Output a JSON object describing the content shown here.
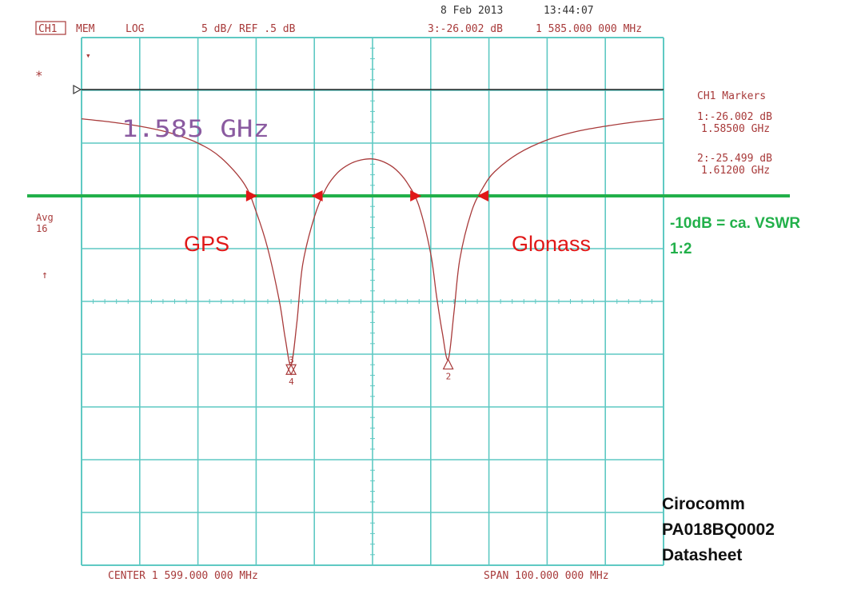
{
  "header": {
    "channel": "CH1",
    "mem": "MEM",
    "format": "LOG",
    "scale": "5 dB/ REF .5 dB",
    "date": "8 Feb 2013",
    "time": "13:44:07",
    "active_marker": "3:-26.002 dB",
    "active_marker_freq": "1 585.000 000 MHz"
  },
  "left_status": {
    "star": "*",
    "avg_line1": "Avg",
    "avg_line2": "16",
    "arrow": "↑"
  },
  "markers_panel": {
    "title": "CH1 Markers",
    "m1_value": "1:-26.002 dB",
    "m1_freq": "1.58500 GHz",
    "m2_value": "2:-25.499 dB",
    "m2_freq": "1.61200 GHz"
  },
  "footer": {
    "center": "CENTER 1 599.000 000 MHz",
    "span": "SPAN 100.000 000 MHz"
  },
  "annotations": {
    "freq_label": "1.585 GHz",
    "gps": "GPS",
    "glonass": "Glonass",
    "vswr_line1": "-10dB = ca. VSWR",
    "vswr_line2": "1:2",
    "source_line1": "Cirocomm",
    "source_line2": "PA018BQ0002",
    "source_line3": "Datasheet"
  },
  "chart_data": {
    "type": "line",
    "title": "",
    "xlabel": "",
    "ylabel": "",
    "x_unit": "MHz",
    "y_unit": "dB",
    "xlim": [
      1549,
      1649
    ],
    "ylim": [
      -45,
      5
    ],
    "x_divisions": 10,
    "y_divisions": 10,
    "grid": true,
    "reference_level_db": 0.5,
    "threshold_db": -10,
    "colors": {
      "grid": "#5fc9c3",
      "trace": "#a83a3a",
      "threshold": "#22b04a",
      "arrows": "#e01818",
      "marker_glyph": "#a83a3a"
    },
    "series": [
      {
        "x": [
          1549,
          1554,
          1559,
          1564,
          1569,
          1573,
          1577,
          1579,
          1581,
          1583,
          1584,
          1585,
          1586,
          1587,
          1589,
          1591,
          1593,
          1595,
          1597,
          1599,
          1601,
          1603,
          1605,
          1607,
          1609,
          1610,
          1611,
          1612,
          1613,
          1614,
          1616,
          1618,
          1620,
          1624,
          1629,
          1634,
          1639,
          1644,
          1649
        ],
        "y": [
          -2.7,
          -3.0,
          -3.4,
          -4.0,
          -5.0,
          -6.4,
          -8.9,
          -11.5,
          -15.0,
          -20.0,
          -23.5,
          -26.0,
          -22.0,
          -16.5,
          -12.0,
          -9.3,
          -7.8,
          -7.0,
          -6.6,
          -6.5,
          -6.8,
          -7.5,
          -8.8,
          -11.0,
          -15.5,
          -19.5,
          -23.0,
          -25.5,
          -21.0,
          -16.0,
          -11.5,
          -9.2,
          -7.7,
          -6.0,
          -4.7,
          -3.9,
          -3.4,
          -3.0,
          -2.7
        ]
      }
    ],
    "markers": [
      {
        "id": "1",
        "x": 1585.0,
        "y": -26.002
      },
      {
        "id": "2",
        "x": 1612.0,
        "y": -25.499
      },
      {
        "id": "3",
        "x": 1585.0,
        "y": -26.002
      },
      {
        "id": "4",
        "x": 1585.0,
        "y": -26.002
      }
    ],
    "threshold_arrows": [
      {
        "x": 1579.2,
        "direction": "right"
      },
      {
        "x": 1588.5,
        "direction": "left"
      },
      {
        "x": 1607.4,
        "direction": "right"
      },
      {
        "x": 1617.0,
        "direction": "left"
      }
    ]
  }
}
